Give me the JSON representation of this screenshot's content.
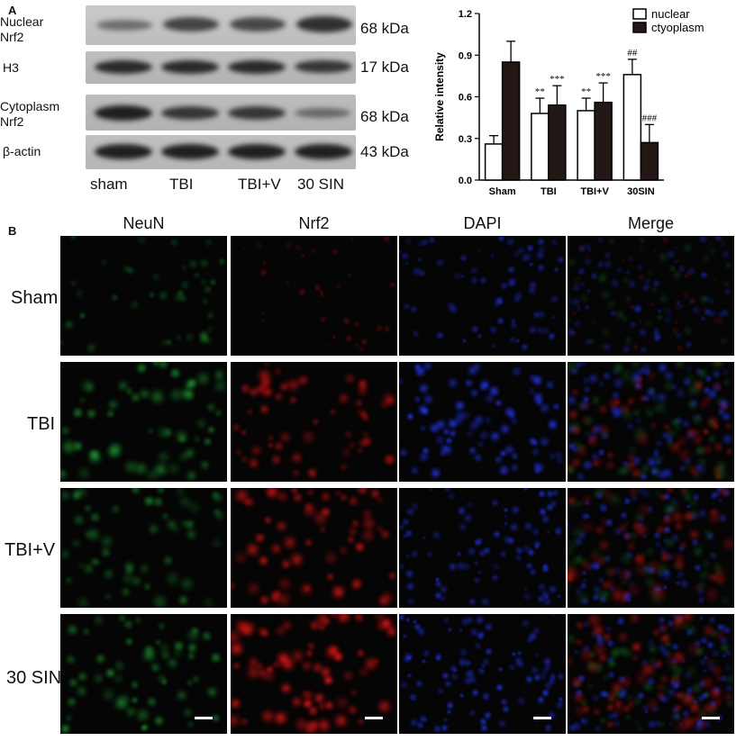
{
  "panel_a": {
    "letter": "A",
    "blot_labels": [
      {
        "lines": [
          "Nuclear",
          "Nrf2"
        ]
      },
      {
        "lines": [
          "H3",
          ""
        ]
      },
      {
        "lines": [
          "Cytoplasm",
          "Nrf2"
        ]
      },
      {
        "lines": [
          "β-actin",
          ""
        ]
      }
    ],
    "kda_labels": [
      "68 kDa",
      "17 kDa",
      "68 kDa",
      "43 kDa"
    ],
    "lanes": [
      "sham",
      "TBI",
      "TBI+V",
      "30 SIN"
    ]
  },
  "panel_b": {
    "letter": "B",
    "columns": [
      "NeuN",
      "Nrf2",
      "DAPI",
      "Merge"
    ],
    "rows": [
      "Sham",
      "TBI",
      "TBI+V",
      "30 SIN"
    ]
  },
  "colors": {
    "nuclear": "#ffffff",
    "cytoplasm": "#231815",
    "neun": "#1f9a2a",
    "nrf2": "#e01010",
    "dapi": "#1c2ee8"
  },
  "chart_data": {
    "type": "bar",
    "categories": [
      "Sham",
      "TBI",
      "TBI+V",
      "30SIN"
    ],
    "series": [
      {
        "name": "nuclear",
        "values": [
          0.26,
          0.48,
          0.5,
          0.76
        ],
        "errors": [
          0.06,
          0.11,
          0.09,
          0.11
        ],
        "annotations": [
          "",
          "**",
          "**",
          "##"
        ]
      },
      {
        "name": "ctyoplasm",
        "values": [
          0.85,
          0.54,
          0.56,
          0.27
        ],
        "errors": [
          0.15,
          0.14,
          0.14,
          0.13
        ],
        "annotations": [
          "",
          "***",
          "***",
          "###"
        ]
      }
    ],
    "ylabel": "Relative intensity",
    "ylim": [
      0.0,
      1.2
    ],
    "yticks": [
      "0.0",
      "0.3",
      "0.6",
      "0.9",
      "1.2"
    ],
    "legend_position": "top-right"
  }
}
